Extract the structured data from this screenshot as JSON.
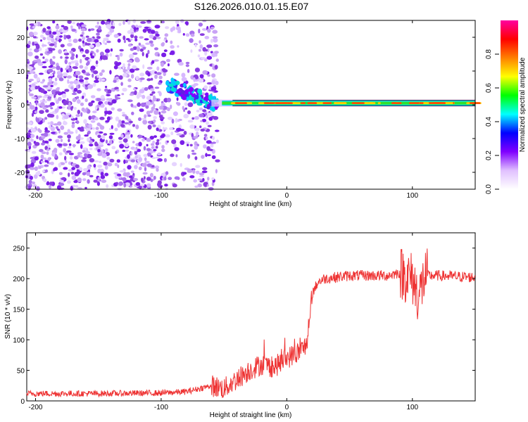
{
  "title": "S126.2026.010.01.15.E07",
  "chart_data": [
    {
      "type": "heatmap",
      "xlabel": "Height of straight line (km)",
      "ylabel": "Frequency (Hz)",
      "xlim": [
        -207,
        150
      ],
      "ylim": [
        -25,
        25
      ],
      "xticks": [
        -200,
        -100,
        0,
        100
      ],
      "yticks": [
        -20,
        -10,
        0,
        10,
        20
      ],
      "colorbar": {
        "label": "Normalized spectral amplitude",
        "range": [
          0,
          1
        ],
        "ticks": [
          "0.0",
          "0.2",
          "0.4",
          "0.6",
          "0.8"
        ],
        "colors": [
          "#ffffff",
          "#e0c0ff",
          "#8000ff",
          "#0000ff",
          "#00ffff",
          "#00ff00",
          "#ffff00",
          "#ff8000",
          "#ff0000",
          "#ff00a0"
        ]
      },
      "noise_region_km": [
        -207,
        -55
      ],
      "carrier_frequency_hz": 0.5,
      "carrier_start_km": -60,
      "disturbance": {
        "x_range_km": [
          -95,
          -55
        ],
        "frequency_hz": [
          6,
          0
        ]
      }
    },
    {
      "type": "line",
      "xlabel": "Height of straight line (km)",
      "ylabel": "SNR (10 * v/v)",
      "xlim": [
        -207,
        150
      ],
      "ylim": [
        0,
        275
      ],
      "xticks": [
        -200,
        -100,
        0,
        100
      ],
      "yticks": [
        0,
        50,
        100,
        150,
        200,
        250
      ],
      "series": [
        {
          "name": "SNR",
          "color": "#ee3333",
          "x": [
            -207,
            -150,
            -100,
            -80,
            -70,
            -60,
            -50,
            -40,
            -30,
            -20,
            -10,
            0,
            10,
            15,
            18,
            20,
            25,
            30,
            50,
            80,
            90,
            95,
            100,
            105,
            110,
            120,
            150
          ],
          "y": [
            12,
            12,
            13,
            15,
            20,
            25,
            20,
            35,
            50,
            60,
            55,
            70,
            80,
            90,
            120,
            175,
            195,
            200,
            205,
            205,
            210,
            205,
            200,
            170,
            205,
            205,
            202
          ]
        }
      ]
    }
  ]
}
